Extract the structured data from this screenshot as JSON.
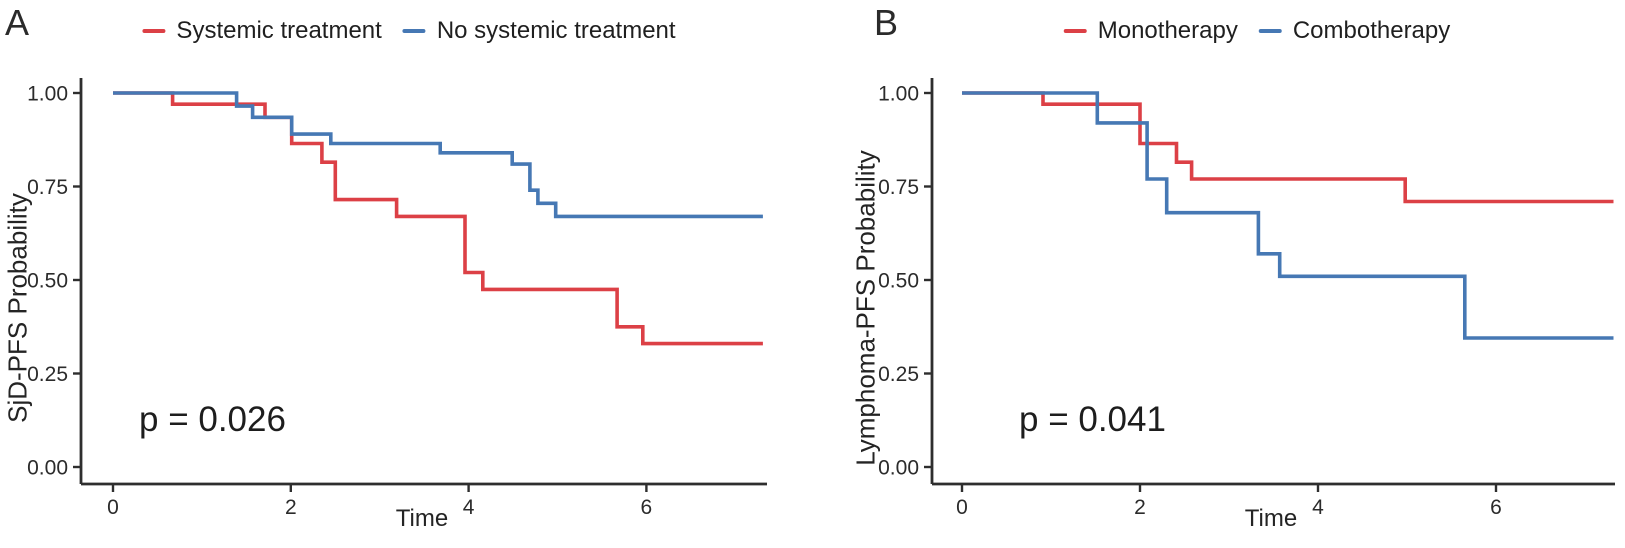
{
  "figure": {
    "background": "#ffffff",
    "axis_color": "#2e2e2e",
    "text_color": "#242424"
  },
  "chart_data": [
    {
      "type": "line",
      "variant": "kaplan_meier_survival_step",
      "panel": "A",
      "xlabel": "Time",
      "ylabel": "SjD-PFS Probability",
      "annotation": "p = 0.026",
      "xlim": [
        0,
        7.4
      ],
      "ylim": [
        0,
        1
      ],
      "xticks": [
        0,
        2,
        4,
        6
      ],
      "xtick_labels": [
        "0",
        "2",
        "4",
        "6"
      ],
      "yticks": [
        0,
        0.25,
        0.5,
        0.75,
        1
      ],
      "ytick_labels": [
        "0.00",
        "0.25",
        "0.50",
        "0.75",
        "1.00"
      ],
      "grid": false,
      "legend_position": "top-center",
      "curve_end_time": 7.31,
      "series": [
        {
          "name": "Systemic treatment",
          "color": "#DC4046",
          "steps": [
            [
              0,
              1.0
            ],
            [
              0.67,
              0.97
            ],
            [
              1.71,
              0.935
            ],
            [
              2.01,
              0.865
            ],
            [
              2.35,
              0.815
            ],
            [
              2.5,
              0.715
            ],
            [
              3.19,
              0.67
            ],
            [
              3.96,
              0.52
            ],
            [
              4.16,
              0.475
            ],
            [
              5.67,
              0.375
            ],
            [
              5.96,
              0.33
            ]
          ]
        },
        {
          "name": "No systemic treatment",
          "color": "#4678B4",
          "steps": [
            [
              0,
              1.0
            ],
            [
              1.39,
              0.965
            ],
            [
              1.57,
              0.935
            ],
            [
              2.01,
              0.89
            ],
            [
              2.45,
              0.865
            ],
            [
              3.68,
              0.84
            ],
            [
              4.49,
              0.81
            ],
            [
              4.69,
              0.74
            ],
            [
              4.78,
              0.705
            ],
            [
              4.98,
              0.67
            ]
          ]
        }
      ]
    },
    {
      "type": "line",
      "variant": "kaplan_meier_survival_step",
      "panel": "B",
      "xlabel": "Time",
      "ylabel": "Lymphoma-PFS Probability",
      "annotation": "p = 0.041",
      "xlim": [
        0,
        7.4
      ],
      "ylim": [
        0,
        1
      ],
      "xticks": [
        0,
        2,
        4,
        6
      ],
      "xtick_labels": [
        "0",
        "2",
        "4",
        "6"
      ],
      "yticks": [
        0,
        0.25,
        0.5,
        0.75,
        1
      ],
      "ytick_labels": [
        "0.00",
        "0.25",
        "0.50",
        "0.75",
        "1.00"
      ],
      "grid": false,
      "legend_position": "top-center",
      "curve_end_time": 7.32,
      "series": [
        {
          "name": "Monotherapy",
          "color": "#DC4046",
          "steps": [
            [
              0,
              1.0
            ],
            [
              0.91,
              0.97
            ],
            [
              2.0,
              0.865
            ],
            [
              2.41,
              0.815
            ],
            [
              2.58,
              0.77
            ],
            [
              4.98,
              0.71
            ]
          ]
        },
        {
          "name": "Combotherapy",
          "color": "#4678B4",
          "steps": [
            [
              0,
              1.0
            ],
            [
              1.52,
              0.92
            ],
            [
              2.08,
              0.77
            ],
            [
              2.3,
              0.68
            ],
            [
              3.33,
              0.57
            ],
            [
              3.57,
              0.51
            ],
            [
              5.65,
              0.345
            ]
          ]
        }
      ]
    }
  ]
}
